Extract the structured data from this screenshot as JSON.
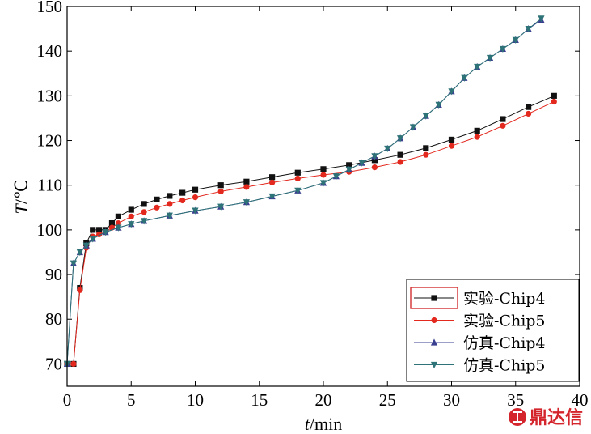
{
  "chart_data": {
    "type": "line",
    "xlabel_var": "t",
    "xlabel_unit": "/min",
    "ylabel_var": "T",
    "ylabel_unit": "/℃",
    "xlim": [
      0,
      40
    ],
    "ylim": [
      65,
      150
    ],
    "xticks": [
      0,
      5,
      10,
      15,
      20,
      25,
      30,
      35,
      40
    ],
    "yticks": [
      70,
      80,
      90,
      100,
      110,
      120,
      130,
      140,
      150
    ],
    "grid": false,
    "legend_position": "bottom-right",
    "series": [
      {
        "name": "实验-Chip4",
        "color": "#111111",
        "marker": "square",
        "x": [
          0,
          0.5,
          1,
          1.5,
          2,
          2.5,
          3,
          3.5,
          4,
          5,
          6,
          7,
          8,
          9,
          10,
          12,
          14,
          16,
          18,
          20,
          22,
          24,
          26,
          28,
          30,
          32,
          34,
          36,
          38
        ],
        "y": [
          70,
          70,
          87,
          97,
          100,
          100,
          100,
          101.5,
          103,
          104.5,
          105.8,
          106.8,
          107.6,
          108.3,
          109,
          110,
          110.8,
          111.8,
          112.8,
          113.6,
          114.5,
          115.6,
          116.8,
          118.3,
          120.2,
          122.2,
          124.8,
          127.5,
          130
        ]
      },
      {
        "name": "实验-Chip5",
        "color": "#e3281e",
        "marker": "circle",
        "x": [
          0,
          0.5,
          1,
          1.5,
          2,
          2.5,
          3,
          3.5,
          4,
          5,
          6,
          7,
          8,
          9,
          10,
          12,
          14,
          16,
          18,
          20,
          22,
          24,
          26,
          28,
          30,
          32,
          34,
          36,
          38
        ],
        "y": [
          70,
          70,
          86.5,
          96,
          98.5,
          99,
          99.5,
          100.5,
          101.5,
          103,
          104,
          105,
          105.8,
          106.6,
          107.3,
          108.6,
          109.6,
          110.6,
          111.5,
          112.3,
          113,
          114,
          115.2,
          116.8,
          118.8,
          120.8,
          123.3,
          126,
          128.7
        ]
      },
      {
        "name": "仿真-Chip4",
        "color": "#3a3f8f",
        "marker": "triangle-up",
        "x": [
          0,
          0.5,
          1,
          1.5,
          2,
          3,
          4,
          5,
          6,
          8,
          10,
          12,
          14,
          16,
          18,
          20,
          21,
          22,
          23,
          24,
          25,
          26,
          27,
          28,
          29,
          30,
          31,
          32,
          33,
          34,
          35,
          36,
          37
        ],
        "y": [
          70,
          92.5,
          95,
          96.5,
          98,
          99.5,
          100.5,
          101.3,
          102,
          103.2,
          104.3,
          105.2,
          106.2,
          107.5,
          108.8,
          110.5,
          112,
          113.5,
          115,
          116.5,
          118.2,
          120.5,
          123,
          125.5,
          128,
          131,
          134,
          136.5,
          138.5,
          140.5,
          142.5,
          145,
          147
        ]
      },
      {
        "name": "仿真-Chip5",
        "color": "#2e7377",
        "marker": "triangle-down",
        "x": [
          0,
          0.5,
          1,
          1.5,
          2,
          3,
          4,
          5,
          6,
          8,
          10,
          12,
          14,
          16,
          18,
          20,
          21,
          22,
          23,
          24,
          25,
          26,
          27,
          28,
          29,
          30,
          31,
          32,
          33,
          34,
          35,
          36,
          37
        ],
        "y": [
          70,
          92.5,
          95,
          96.5,
          98,
          99.5,
          100.5,
          101.3,
          102,
          103.2,
          104.3,
          105.2,
          106.2,
          107.5,
          108.8,
          110.5,
          112,
          113.5,
          115,
          116.5,
          118.2,
          120.5,
          123,
          125.5,
          128,
          131,
          134,
          136.5,
          138.5,
          140.5,
          142.5,
          145,
          147.3
        ]
      }
    ]
  },
  "watermark": {
    "text": "鼎达信",
    "color": "#d4252c"
  }
}
